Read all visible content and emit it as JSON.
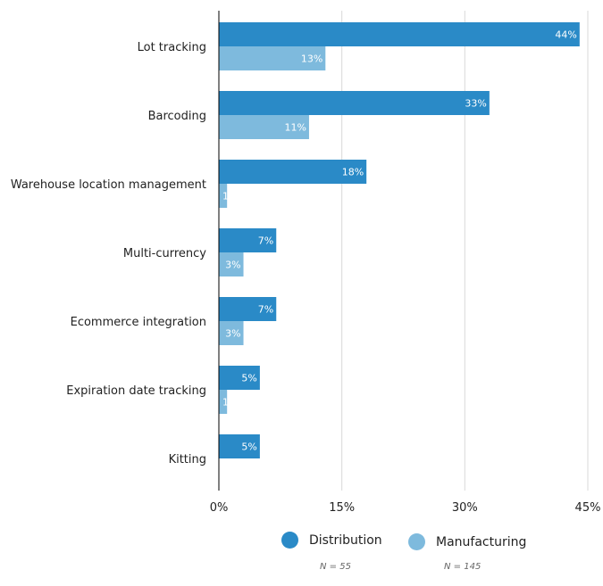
{
  "chart_data": {
    "type": "bar",
    "orientation": "horizontal",
    "categories": [
      "Lot tracking",
      "Barcoding",
      "Warehouse location management",
      "Multi-currency",
      "Ecommerce integration",
      "Expiration date tracking",
      "Kitting"
    ],
    "series": [
      {
        "name": "Distribution",
        "color": "#2a8ac7",
        "values": [
          44,
          33,
          18,
          7,
          7,
          5,
          5
        ],
        "labels": [
          "44%",
          "33%",
          "18%",
          "7%",
          "7%",
          "5%",
          "5%"
        ]
      },
      {
        "name": "Manufacturing",
        "color": "#7ebadd",
        "values": [
          13,
          11,
          1,
          3,
          3,
          1,
          0
        ],
        "labels": [
          "13%",
          "11%",
          "1",
          "3%",
          "3%",
          "1",
          ""
        ]
      }
    ],
    "xlim": [
      0,
      45
    ],
    "xticks": [
      "0%",
      "15%",
      "30%",
      "45%"
    ],
    "xtick_values": [
      0,
      15,
      30,
      45
    ],
    "grid": true,
    "legend_position": "bottom"
  },
  "legend": {
    "items": [
      {
        "label": "Distribution",
        "n": "N = 55",
        "color": "#2a8ac7"
      },
      {
        "label": "Manufacturing",
        "n": "N = 145",
        "color": "#7ebadd"
      }
    ]
  }
}
